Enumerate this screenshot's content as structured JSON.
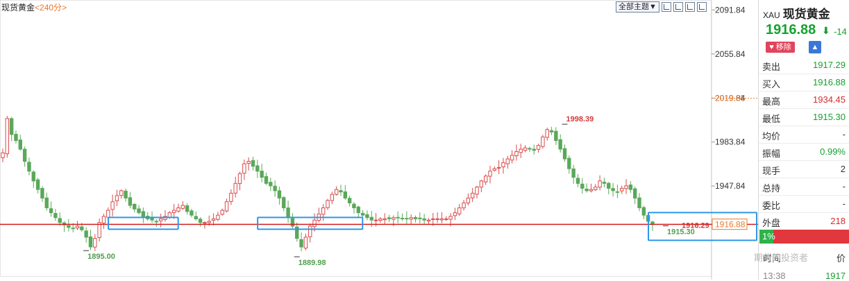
{
  "header": {
    "instrument": "现货黄金",
    "period": "<240分>"
  },
  "toolbar": {
    "theme_label": "全部主题▼"
  },
  "chart_data": {
    "type": "candlestick",
    "ylim": [
      1873,
      2100
    ],
    "y_ticks": [
      "2091.84",
      "2055.84",
      "2019.84",
      "1983.84",
      "1947.84"
    ],
    "y_tick_values": [
      2091.84,
      2055.84,
      2019.84,
      1983.84,
      1947.84
    ],
    "close_path": [
      1975,
      2003,
      1990,
      1985,
      1978,
      1968,
      1960,
      1952,
      1945,
      1938,
      1930,
      1926,
      1922,
      1918,
      1916,
      1914,
      1913,
      1915,
      1912,
      1906,
      1898,
      1905,
      1918,
      1923,
      1928,
      1935,
      1940,
      1944,
      1938,
      1932,
      1929,
      1926,
      1923,
      1921,
      1920,
      1919,
      1921,
      1923,
      1926,
      1928,
      1930,
      1932,
      1927,
      1924,
      1921,
      1918,
      1918,
      1919,
      1921,
      1924,
      1928,
      1935,
      1942,
      1950,
      1958,
      1966,
      1968,
      1964,
      1960,
      1955,
      1950,
      1948,
      1944,
      1938,
      1930,
      1922,
      1915,
      1905,
      1898,
      1906,
      1915,
      1920,
      1925,
      1930,
      1936,
      1941,
      1945,
      1943,
      1938,
      1934,
      1930,
      1926,
      1924,
      1922,
      1920,
      1920,
      1921,
      1921,
      1921,
      1922,
      1922,
      1921,
      1921,
      1922,
      1921,
      1921,
      1920,
      1920,
      1921,
      1921,
      1921,
      1921,
      1923,
      1926,
      1930,
      1934,
      1938,
      1942,
      1947,
      1952,
      1956,
      1960,
      1962,
      1963,
      1967,
      1970,
      1973,
      1976,
      1978,
      1979,
      1978,
      1977,
      1981,
      1988,
      1994,
      1992,
      1985,
      1978,
      1970,
      1962,
      1955,
      1950,
      1946,
      1944,
      1945,
      1947,
      1952,
      1950,
      1946,
      1944,
      1943,
      1946,
      1948,
      1945,
      1938,
      1930,
      1924,
      1919,
      1917
    ],
    "high": 1998.39,
    "low": 1889.98,
    "point_labels": [
      {
        "text": "1998.39",
        "value": 1998.39,
        "color": "#d33a3a",
        "index": 128
      },
      {
        "text": "1895.00",
        "value": 1895.0,
        "color": "#4f9e4f",
        "index": 19
      },
      {
        "text": "1889.98",
        "value": 1889.98,
        "color": "#4f9e4f",
        "index": 67
      },
      {
        "text": "1915.30",
        "value": 1915.3,
        "color": "#4f9e4f",
        "index": 151
      },
      {
        "text": "1916.29",
        "value": 1916.29,
        "color": "#d33a3a",
        "index": 151
      }
    ],
    "current_price": 1916.88,
    "current_price_label": "1916.88",
    "prev_close": 2019.65,
    "prev_close_label": "2019.65",
    "support_line": 1916.5,
    "highlight_boxes": [
      {
        "from": 25,
        "to": 39
      },
      {
        "from": 59,
        "to": 81
      },
      {
        "from": 148,
        "to": 155
      }
    ],
    "up_color": "#d94a4a",
    "down_color": "#5aa85a",
    "line_color": "#d21c1c",
    "box_color": "#2d96e8"
  },
  "panel": {
    "code": "XAU",
    "name": "现货黄金",
    "price": "1916.88",
    "arrow": "⬇",
    "change": "-14",
    "remove_label": "♥ 移除",
    "bell_icon": "bell-icon",
    "rows": [
      {
        "label": "卖出",
        "value": "1917.29",
        "color": "green"
      },
      {
        "label": "买入",
        "value": "1916.88",
        "color": "green"
      },
      {
        "label": "最高",
        "value": "1934.45",
        "color": "red"
      },
      {
        "label": "最低",
        "value": "1915.30",
        "color": "green"
      },
      {
        "label": "均价",
        "value": "-",
        "color": "dark"
      },
      {
        "label": "振幅",
        "value": "0.99%",
        "color": "green"
      },
      {
        "label": "现手",
        "value": "2",
        "color": "dark"
      },
      {
        "label": "总持",
        "value": "-",
        "color": "dark"
      },
      {
        "label": "委比",
        "value": "-",
        "color": "dark"
      },
      {
        "label": "外盘",
        "value": "218",
        "color": "red"
      }
    ],
    "ratio_label": "1%",
    "ratio_value": 0.15,
    "tick_header_left": "时间",
    "tick_header_right": "价",
    "tick_time": "13:38",
    "tick_price": "1917",
    "watermark": "期货的投资者"
  }
}
